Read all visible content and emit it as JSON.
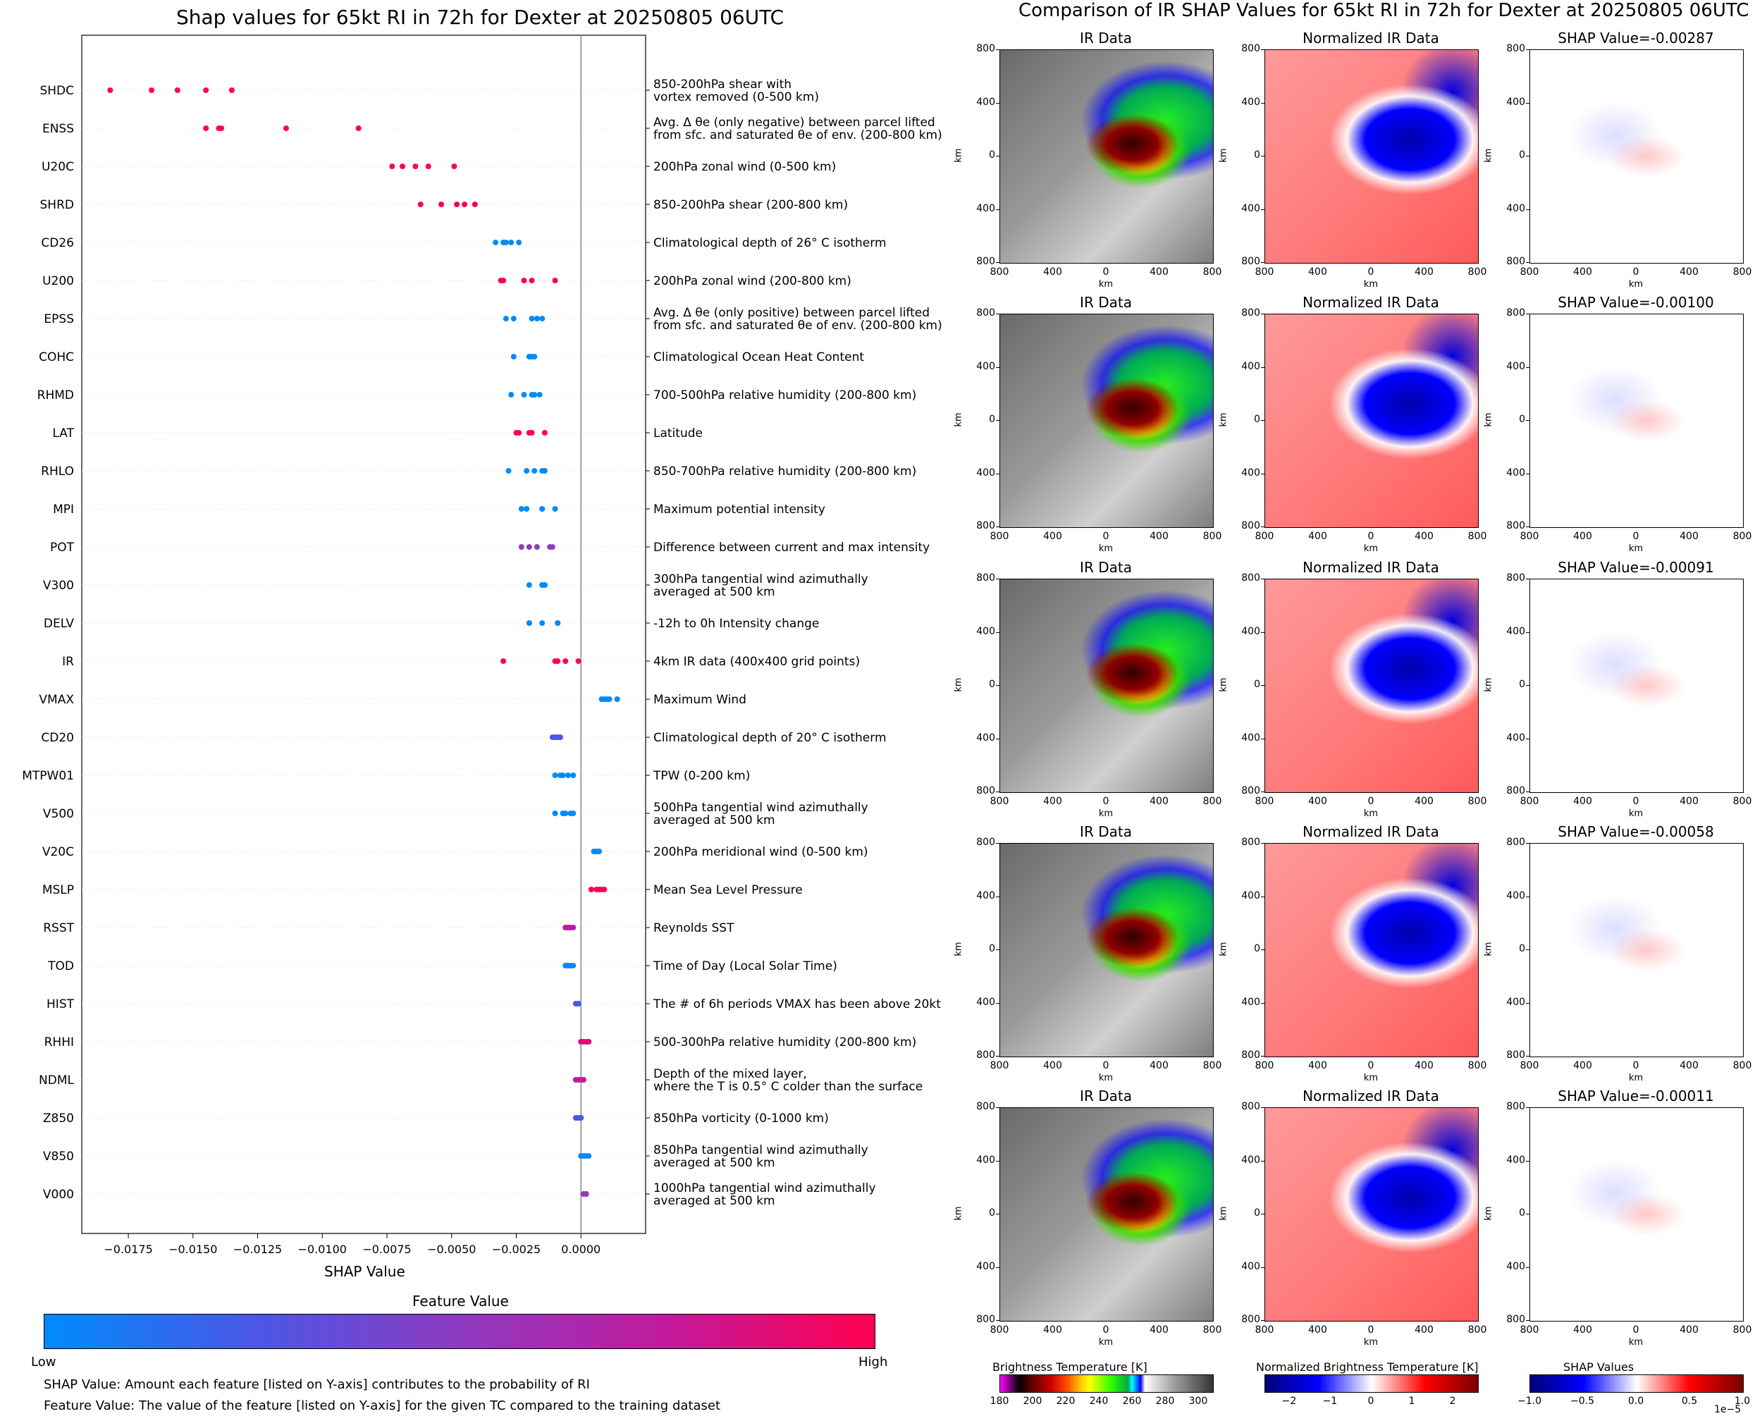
{
  "left_title": "Shap values for 65kt RI in 72h for Dexter at 20250805 06UTC",
  "right_title": "Comparison of IR SHAP Values for 65kt RI in 72h for Dexter at 20250805 06UTC",
  "chart_data": {
    "type": "scatter",
    "xlabel": "SHAP Value",
    "xlim": [
      -0.0193,
      0.0025
    ],
    "x_ticks": [
      "−0.0175",
      "−0.0150",
      "−0.0125",
      "−0.0100",
      "−0.0075",
      "−0.0050",
      "−0.0025",
      "0.0000"
    ],
    "colorbar": {
      "title": "Feature Value",
      "low": "Low",
      "high": "High",
      "colors": [
        "#008bfb",
        "#4a57e6",
        "#8e3bc0",
        "#c21a9c",
        "#ff0051"
      ]
    },
    "features": [
      {
        "name": "SHDC",
        "desc": "850-200hPa shear with\nvortex removed (0-500 km)",
        "color": "#ff0051",
        "values": [
          -0.0182,
          -0.0166,
          -0.0156,
          -0.0145,
          -0.0135
        ]
      },
      {
        "name": "ENSS",
        "desc": "Avg. Δ θe (only negative) between parcel lifted\nfrom sfc. and saturated θe of env. (200-800 km)",
        "color": "#ff0051",
        "values": [
          -0.0145,
          -0.014,
          -0.0139,
          -0.0114,
          -0.0086
        ]
      },
      {
        "name": "U20C",
        "desc": "200hPa zonal wind (0-500 km)",
        "color": "#ff0051",
        "values": [
          -0.0073,
          -0.0069,
          -0.0064,
          -0.0059,
          -0.0049
        ]
      },
      {
        "name": "SHRD",
        "desc": "850-200hPa shear (200-800 km)",
        "color": "#ff0051",
        "values": [
          -0.0062,
          -0.0054,
          -0.0048,
          -0.0045,
          -0.0041
        ]
      },
      {
        "name": "CD26",
        "desc": "Climatological depth of 26° C isotherm",
        "color": "#008bfb",
        "values": [
          -0.0033,
          -0.003,
          -0.0029,
          -0.0027,
          -0.0024
        ]
      },
      {
        "name": "U200",
        "desc": "200hPa zonal wind (200-800 km)",
        "color": "#ff0051",
        "values": [
          -0.0031,
          -0.003,
          -0.0022,
          -0.0019,
          -0.001
        ]
      },
      {
        "name": "EPSS",
        "desc": "Avg. Δ θe (only positive) between parcel lifted\nfrom sfc. and saturated θe of env. (200-800 km)",
        "color": "#008bfb",
        "values": [
          -0.0029,
          -0.0026,
          -0.0019,
          -0.0017,
          -0.0015
        ]
      },
      {
        "name": "COHC",
        "desc": "Climatological Ocean Heat Content",
        "color": "#008bfb",
        "values": [
          -0.0026,
          -0.002,
          -0.0019,
          -0.0019,
          -0.0018
        ]
      },
      {
        "name": "RHMD",
        "desc": "700-500hPa relative humidity (200-800 km)",
        "color": "#008bfb",
        "values": [
          -0.0027,
          -0.0022,
          -0.0019,
          -0.0018,
          -0.0016
        ]
      },
      {
        "name": "LAT",
        "desc": "Latitude",
        "color": "#ff0051",
        "values": [
          -0.0025,
          -0.0024,
          -0.002,
          -0.0019,
          -0.0014
        ]
      },
      {
        "name": "RHLO",
        "desc": "850-700hPa relative humidity (200-800 km)",
        "color": "#008bfb",
        "values": [
          -0.0028,
          -0.0021,
          -0.0018,
          -0.0015,
          -0.0014
        ]
      },
      {
        "name": "MPI",
        "desc": "Maximum potential intensity",
        "color": "#008bfb",
        "values": [
          -0.0023,
          -0.0021,
          -0.0015,
          -0.0015,
          -0.001
        ]
      },
      {
        "name": "POT",
        "desc": "Difference between current and max intensity",
        "color": "#8e3bc0",
        "values": [
          -0.0023,
          -0.002,
          -0.0017,
          -0.0012,
          -0.0011
        ]
      },
      {
        "name": "V300",
        "desc": "300hPa tangential wind azimuthally\naveraged at 500 km",
        "color": "#008bfb",
        "values": [
          -0.002,
          -0.0015,
          -0.0015,
          -0.0014,
          -0.0014
        ]
      },
      {
        "name": "DELV",
        "desc": "-12h to 0h Intensity change",
        "color": "#008bfb",
        "values": [
          -0.002,
          -0.0015,
          -0.0009,
          -0.002,
          -0.0009
        ]
      },
      {
        "name": "IR",
        "desc": "4km IR data (400x400 grid points)",
        "color": "#ff0051",
        "values": [
          -0.003,
          -0.001,
          -0.0009,
          -0.0006,
          -0.0001
        ]
      },
      {
        "name": "VMAX",
        "desc": "Maximum Wind",
        "color": "#0a87f8",
        "values": [
          0.0008,
          0.001,
          0.0011,
          0.0014,
          0.0009
        ]
      },
      {
        "name": "CD20",
        "desc": "Climatological depth of 20° C isotherm",
        "color": "#4a57e6",
        "values": [
          -0.0011,
          -0.001,
          -0.001,
          -0.0009,
          -0.0008
        ]
      },
      {
        "name": "MTPW01",
        "desc": "TPW (0-200 km)",
        "color": "#008bfb",
        "values": [
          -0.001,
          -0.0008,
          -0.0007,
          -0.0005,
          -0.0003
        ]
      },
      {
        "name": "V500",
        "desc": "500hPa tangential wind azimuthally\naveraged at 500 km",
        "color": "#008bfb",
        "values": [
          -0.001,
          -0.0007,
          -0.0006,
          -0.0004,
          -0.0003
        ]
      },
      {
        "name": "V20C",
        "desc": "200hPa meridional wind (0-500 km)",
        "color": "#0a87f8",
        "values": [
          0.0005,
          0.0006,
          0.0006,
          0.0007,
          0.0007
        ]
      },
      {
        "name": "MSLP",
        "desc": "Mean Sea Level Pressure",
        "color": "#ff0051",
        "values": [
          0.0004,
          0.0006,
          0.0007,
          0.0008,
          0.0009
        ]
      },
      {
        "name": "RSST",
        "desc": "Reynolds SST",
        "color": "#c21a9c",
        "values": [
          -0.0006,
          -0.0005,
          -0.0005,
          -0.0004,
          -0.0003
        ]
      },
      {
        "name": "TOD",
        "desc": "Time of Day (Local Solar Time)",
        "color": "#0a87f8",
        "values": [
          -0.0006,
          -0.0005,
          -0.0005,
          -0.0004,
          -0.0003
        ]
      },
      {
        "name": "HIST",
        "desc": "The # of 6h periods VMAX has been above 20kt",
        "color": "#4a57e6",
        "values": [
          -0.0002,
          -0.0002,
          -0.0001,
          -0.0001,
          -0.0001
        ]
      },
      {
        "name": "RHHI",
        "desc": "500-300hPa relative humidity (200-800 km)",
        "color": "#e00a78",
        "values": [
          0.0,
          0.0001,
          0.0002,
          0.0003,
          0.0003
        ]
      },
      {
        "name": "NDML",
        "desc": "Depth of the mixed layer,\nwhere the T is 0.5° C colder than the surface",
        "color": "#c21a9c",
        "values": [
          -0.0002,
          -0.0001,
          0.0,
          0.0001,
          0.0001
        ]
      },
      {
        "name": "Z850",
        "desc": "850hPa vorticity (0-1000 km)",
        "color": "#4a57e6",
        "values": [
          -0.0002,
          -0.0001,
          -0.0001,
          0.0,
          0.0
        ]
      },
      {
        "name": "V850",
        "desc": "850hPa tangential wind azimuthally\naveraged at 500 km",
        "color": "#0a87f8",
        "values": [
          0.0,
          0.0001,
          0.0001,
          0.0002,
          0.0003
        ]
      },
      {
        "name": "V000",
        "desc": "1000hPa tangential wind azimuthally\naveraged at 500 km",
        "color": "#8e3bc0",
        "values": [
          0.0001,
          0.0001,
          0.0002,
          0.0002,
          0.0002
        ]
      }
    ]
  },
  "notes": [
    "SHAP Value: Amount each feature [listed on Y-axis] contributes to the probability of RI",
    "Feature Value: The value of the feature [listed on Y-axis] for the given TC compared to the training dataset"
  ],
  "ir_panels": {
    "col_titles": [
      "IR Data",
      "Normalized IR Data"
    ],
    "shap_titles": [
      "SHAP Value=-0.00287",
      "SHAP Value=-0.00100",
      "SHAP Value=-0.00091",
      "SHAP Value=-0.00058",
      "SHAP Value=-0.00011"
    ],
    "x_ticks": [
      "800",
      "400",
      "0",
      "400",
      "800"
    ],
    "y_ticks": [
      "800",
      "400",
      "0",
      "400",
      "800"
    ],
    "axis_unit": "km"
  },
  "colorbars": {
    "bt": {
      "title": "Brightness Temperature [K]",
      "ticks": [
        "180",
        "200",
        "220",
        "240",
        "260",
        "280",
        "300"
      ]
    },
    "norm": {
      "title": "Normalized Brightness Temperature [K]",
      "ticks": [
        "−2",
        "−1",
        "0",
        "1",
        "2"
      ]
    },
    "shap": {
      "title": "SHAP Values",
      "ticks": [
        "−1.0",
        "−0.5",
        "0.0",
        "0.5",
        "1.0"
      ],
      "exponent": "1e−5"
    }
  }
}
